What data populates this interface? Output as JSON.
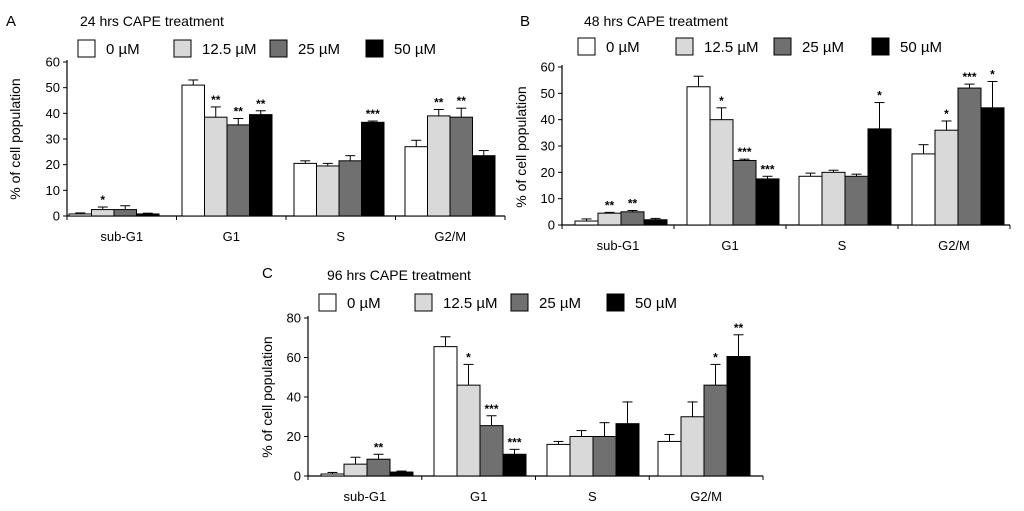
{
  "legend": [
    "0 µM",
    "12.5 µM",
    "25 µM",
    "50 µM"
  ],
  "colors": {
    "c0": "#ffffff",
    "c1": "#d9d9d9",
    "c2": "#707070",
    "c3": "#000000"
  },
  "chart_data": [
    {
      "type": "bar",
      "panel": "A",
      "title": "24 hrs CAPE treatment",
      "ylabel": "% of cell population",
      "xlabel": "",
      "ylim": [
        0,
        60
      ],
      "yticks": [
        0,
        10,
        20,
        30,
        40,
        50,
        60
      ],
      "categories": [
        "sub-G1",
        "G1",
        "S",
        "G2/M"
      ],
      "series": [
        {
          "name": "0 µM",
          "values": [
            0.8,
            51,
            20.5,
            27
          ],
          "errors": [
            0.4,
            2,
            1,
            2.5
          ],
          "sig": [
            "",
            "",
            "",
            ""
          ]
        },
        {
          "name": "12.5 µM",
          "values": [
            2.5,
            38.5,
            19.5,
            39
          ],
          "errors": [
            1,
            4,
            1,
            2.5
          ],
          "sig": [
            "*",
            "**",
            "",
            "**"
          ]
        },
        {
          "name": "25 µM",
          "values": [
            2.5,
            35.5,
            21.5,
            38.5
          ],
          "errors": [
            1.5,
            2.5,
            2,
            3.5
          ],
          "sig": [
            "",
            "**",
            "",
            "**"
          ]
        },
        {
          "name": "50 µM",
          "values": [
            0.8,
            39.5,
            36.5,
            23.5
          ],
          "errors": [
            0.3,
            1.5,
            0.5,
            2
          ],
          "sig": [
            "",
            "**",
            "***",
            ""
          ]
        }
      ]
    },
    {
      "type": "bar",
      "panel": "B",
      "title": "48 hrs CAPE treatment",
      "ylabel": "% of cell population",
      "xlabel": "",
      "ylim": [
        0,
        60
      ],
      "yticks": [
        0,
        10,
        20,
        30,
        40,
        50,
        60
      ],
      "categories": [
        "sub-G1",
        "G1",
        "S",
        "G2/M"
      ],
      "series": [
        {
          "name": "0 µM",
          "values": [
            1.5,
            52.5,
            18.5,
            27
          ],
          "errors": [
            0.8,
            4,
            1.2,
            3.5
          ],
          "sig": [
            "",
            "",
            "",
            ""
          ]
        },
        {
          "name": "12.5 µM",
          "values": [
            4.5,
            40,
            20,
            36
          ],
          "errors": [
            0.3,
            4.5,
            0.8,
            3.5
          ],
          "sig": [
            "**",
            "*",
            "",
            "*"
          ]
        },
        {
          "name": "25 µM",
          "values": [
            5,
            24.5,
            18.5,
            52
          ],
          "errors": [
            0.5,
            0.5,
            0.8,
            1.5
          ],
          "sig": [
            "**",
            "***",
            "",
            "***"
          ]
        },
        {
          "name": "50 µM",
          "values": [
            2,
            17.5,
            36.5,
            44.5
          ],
          "errors": [
            0.5,
            1,
            10,
            10
          ],
          "sig": [
            "",
            "***",
            "*",
            "*"
          ]
        }
      ]
    },
    {
      "type": "bar",
      "panel": "C",
      "title": "96 hrs CAPE treatment",
      "ylabel": "% of cell population",
      "xlabel": "",
      "ylim": [
        0,
        80
      ],
      "yticks": [
        0,
        20,
        40,
        60,
        80
      ],
      "categories": [
        "sub-G1",
        "G1",
        "S",
        "G2/M"
      ],
      "series": [
        {
          "name": "0 µM",
          "values": [
            1,
            65.5,
            16,
            17.5
          ],
          "errors": [
            0.8,
            5,
            1.5,
            3.5
          ],
          "sig": [
            "",
            "",
            "",
            ""
          ]
        },
        {
          "name": "12.5 µM",
          "values": [
            6,
            46,
            20,
            30
          ],
          "errors": [
            3.5,
            10.5,
            3,
            7.5
          ],
          "sig": [
            "",
            "*",
            "",
            ""
          ]
        },
        {
          "name": "25 µM",
          "values": [
            8.5,
            25.5,
            20,
            46
          ],
          "errors": [
            2.5,
            5,
            7,
            10.5
          ],
          "sig": [
            "**",
            "***",
            "",
            "*"
          ]
        },
        {
          "name": "50 µM",
          "values": [
            2,
            11,
            26.5,
            60.5
          ],
          "errors": [
            0.5,
            2.5,
            11,
            11
          ],
          "sig": [
            "",
            "***",
            "",
            "**"
          ]
        }
      ]
    }
  ]
}
